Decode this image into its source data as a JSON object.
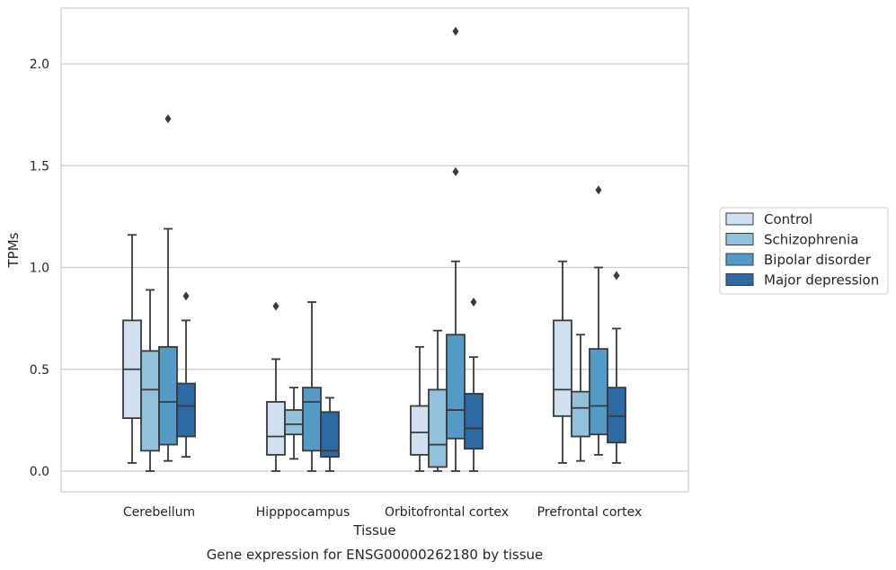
{
  "chart_data": {
    "type": "box",
    "title": "",
    "caption": "Gene expression for ENSG00000262180 by tissue",
    "xlabel": "Tissue",
    "ylabel": "TPMs",
    "ylim": [
      -0.1,
      2.27
    ],
    "yticks": [
      0.0,
      0.5,
      1.0,
      1.5,
      2.0
    ],
    "ytick_labels": [
      "0.0",
      "0.5",
      "1.0",
      "1.5",
      "2.0"
    ],
    "grid": "horizontal",
    "legend_position": "right",
    "categories": [
      "Cerebellum",
      "Hipppocampus",
      "Orbitofrontal cortex",
      "Prefrontal cortex"
    ],
    "series": [
      {
        "name": "Control",
        "color": "#cfe0f0",
        "boxes": [
          {
            "min": 0.04,
            "q1": 0.26,
            "median": 0.5,
            "q3": 0.74,
            "max": 1.16,
            "outliers": []
          },
          {
            "min": 0.0,
            "q1": 0.08,
            "median": 0.17,
            "q3": 0.34,
            "max": 0.55,
            "outliers": [
              0.81
            ]
          },
          {
            "min": 0.0,
            "q1": 0.08,
            "median": 0.19,
            "q3": 0.32,
            "max": 0.61,
            "outliers": []
          },
          {
            "min": 0.04,
            "q1": 0.27,
            "median": 0.4,
            "q3": 0.74,
            "max": 1.03,
            "outliers": []
          }
        ]
      },
      {
        "name": "Schizophrenia",
        "color": "#93c0dc",
        "boxes": [
          {
            "min": 0.0,
            "q1": 0.1,
            "median": 0.4,
            "q3": 0.59,
            "max": 0.89,
            "outliers": []
          },
          {
            "min": 0.06,
            "q1": 0.18,
            "median": 0.23,
            "q3": 0.3,
            "max": 0.41,
            "outliers": []
          },
          {
            "min": 0.0,
            "q1": 0.02,
            "median": 0.13,
            "q3": 0.4,
            "max": 0.69,
            "outliers": []
          },
          {
            "min": 0.05,
            "q1": 0.17,
            "median": 0.31,
            "q3": 0.39,
            "max": 0.67,
            "outliers": []
          }
        ]
      },
      {
        "name": "Bipolar disorder",
        "color": "#5599c7",
        "boxes": [
          {
            "min": 0.05,
            "q1": 0.13,
            "median": 0.34,
            "q3": 0.61,
            "max": 1.19,
            "outliers": [
              1.73
            ]
          },
          {
            "min": 0.0,
            "q1": 0.1,
            "median": 0.34,
            "q3": 0.41,
            "max": 0.83,
            "outliers": []
          },
          {
            "min": 0.0,
            "q1": 0.16,
            "median": 0.3,
            "q3": 0.67,
            "max": 1.03,
            "outliers": [
              1.47,
              2.16
            ]
          },
          {
            "min": 0.08,
            "q1": 0.18,
            "median": 0.32,
            "q3": 0.6,
            "max": 1.0,
            "outliers": [
              1.38
            ]
          }
        ]
      },
      {
        "name": "Major depression",
        "color": "#2d6aa4",
        "boxes": [
          {
            "min": 0.07,
            "q1": 0.17,
            "median": 0.32,
            "q3": 0.43,
            "max": 0.74,
            "outliers": [
              0.86
            ]
          },
          {
            "min": 0.0,
            "q1": 0.07,
            "median": 0.1,
            "q3": 0.29,
            "max": 0.36,
            "outliers": []
          },
          {
            "min": 0.0,
            "q1": 0.11,
            "median": 0.21,
            "q3": 0.38,
            "max": 0.56,
            "outliers": [
              0.83
            ]
          },
          {
            "min": 0.04,
            "q1": 0.14,
            "median": 0.27,
            "q3": 0.41,
            "max": 0.7,
            "outliers": [
              0.96
            ]
          }
        ]
      }
    ]
  }
}
